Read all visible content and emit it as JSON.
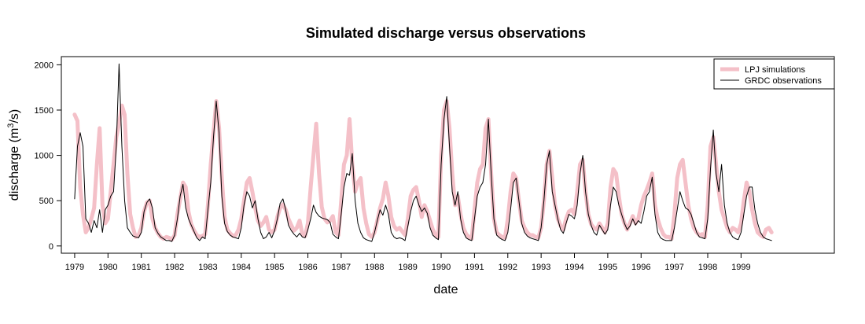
{
  "chart_data": {
    "type": "line",
    "title": "Simulated discharge versus observations",
    "xlabel": "date",
    "ylabel": "discharge (m³/s)",
    "ylabel_parts": {
      "prefix": "discharge (m",
      "sup": "3",
      "suffix": "/s)"
    },
    "x_ticks": [
      "1979",
      "1980",
      "1981",
      "1982",
      "1983",
      "1984",
      "1985",
      "1986",
      "1987",
      "1988",
      "1989",
      "1990",
      "1991",
      "1992",
      "1993",
      "1994",
      "1995",
      "1996",
      "1997",
      "1998",
      "1999"
    ],
    "y_ticks": [
      0,
      500,
      1000,
      1500,
      2000
    ],
    "xlim": [
      1978.6,
      2001.8
    ],
    "ylim": [
      -80,
      2090
    ],
    "grid": false,
    "legend_position": "top-right",
    "series": [
      {
        "name": "LPJ simulations",
        "color": "#f4c0c8",
        "style": "thick",
        "years": [
          [
            1450,
            1380,
            650,
            350,
            150,
            200,
            300,
            420,
            900,
            1300,
            450,
            250
          ],
          [
            300,
            600,
            900,
            1200,
            1350,
            1550,
            1450,
            800,
            350,
            200,
            100,
            120
          ],
          [
            200,
            380,
            480,
            500,
            300,
            200,
            140,
            100,
            80,
            100,
            90,
            70
          ],
          [
            120,
            350,
            520,
            700,
            650,
            380,
            240,
            170,
            120,
            100,
            110,
            130
          ],
          [
            450,
            900,
            1250,
            1600,
            1300,
            750,
            320,
            180,
            140,
            110,
            120,
            180
          ],
          [
            300,
            500,
            700,
            750,
            600,
            420,
            280,
            220,
            260,
            320,
            180,
            150
          ],
          [
            180,
            320,
            420,
            460,
            400,
            300,
            230,
            170,
            200,
            280,
            130,
            110
          ],
          [
            250,
            650,
            1000,
            1350,
            800,
            430,
            300,
            260,
            280,
            330,
            150,
            120
          ],
          [
            500,
            900,
            1000,
            1400,
            900,
            600,
            700,
            750,
            420,
            250,
            130,
            100
          ],
          [
            150,
            280,
            420,
            520,
            700,
            550,
            320,
            220,
            180,
            200,
            160,
            120
          ],
          [
            300,
            550,
            620,
            650,
            500,
            320,
            450,
            380,
            280,
            180,
            120,
            100
          ],
          [
            1000,
            1500,
            1600,
            1300,
            800,
            450,
            550,
            350,
            200,
            130,
            100,
            80
          ],
          [
            400,
            700,
            850,
            900,
            1300,
            1400,
            800,
            300,
            150,
            120,
            100,
            90
          ],
          [
            300,
            600,
            800,
            750,
            500,
            280,
            200,
            150,
            120,
            120,
            100,
            90
          ],
          [
            200,
            500,
            900,
            1050,
            750,
            450,
            300,
            220,
            180,
            300,
            380,
            400
          ],
          [
            350,
            600,
            900,
            950,
            600,
            350,
            240,
            200,
            180,
            250,
            200,
            150
          ],
          [
            250,
            650,
            850,
            800,
            550,
            350,
            250,
            180,
            250,
            330,
            250,
            300
          ],
          [
            450,
            550,
            620,
            700,
            800,
            450,
            300,
            200,
            130,
            100,
            100,
            80
          ],
          [
            350,
            750,
            900,
            950,
            700,
            450,
            300,
            200,
            150,
            120,
            130,
            100
          ],
          [
            450,
            1100,
            1200,
            900,
            600,
            400,
            300,
            200,
            150,
            200,
            180,
            150
          ],
          [
            250,
            500,
            700,
            600,
            400,
            250,
            150,
            120,
            100,
            180,
            200,
            150
          ]
        ]
      },
      {
        "name": "GRDC observations",
        "color": "#000000",
        "style": "thin",
        "years": [
          [
            520,
            1100,
            1250,
            1100,
            300,
            250,
            150,
            280,
            200,
            400,
            150,
            400
          ],
          [
            450,
            550,
            600,
            1100,
            2010,
            1100,
            500,
            200,
            150,
            110,
            100,
            90
          ],
          [
            150,
            380,
            480,
            520,
            420,
            200,
            140,
            100,
            80,
            60,
            60,
            50
          ],
          [
            120,
            300,
            550,
            680,
            420,
            300,
            230,
            160,
            90,
            60,
            100,
            80
          ],
          [
            400,
            700,
            1200,
            1600,
            1250,
            550,
            250,
            160,
            120,
            100,
            90,
            80
          ],
          [
            200,
            450,
            600,
            550,
            420,
            500,
            300,
            150,
            80,
            100,
            150,
            90
          ],
          [
            170,
            300,
            470,
            520,
            400,
            230,
            170,
            130,
            100,
            140,
            100,
            90
          ],
          [
            180,
            300,
            450,
            370,
            330,
            310,
            300,
            290,
            260,
            130,
            100,
            80
          ],
          [
            350,
            650,
            800,
            780,
            1020,
            500,
            250,
            150,
            90,
            70,
            60,
            50
          ],
          [
            150,
            280,
            400,
            340,
            450,
            350,
            150,
            100,
            80,
            90,
            80,
            60
          ],
          [
            220,
            380,
            500,
            550,
            450,
            380,
            420,
            360,
            200,
            120,
            90,
            70
          ],
          [
            900,
            1400,
            1650,
            1100,
            600,
            450,
            600,
            300,
            150,
            90,
            70,
            60
          ],
          [
            300,
            550,
            650,
            700,
            900,
            1400,
            800,
            300,
            120,
            90,
            70,
            60
          ],
          [
            150,
            400,
            700,
            750,
            500,
            250,
            150,
            110,
            90,
            80,
            70,
            60
          ],
          [
            200,
            500,
            900,
            1050,
            600,
            450,
            300,
            180,
            140,
            250,
            350,
            330
          ],
          [
            300,
            450,
            800,
            1000,
            600,
            350,
            230,
            150,
            120,
            230,
            180,
            130
          ],
          [
            180,
            450,
            650,
            600,
            450,
            350,
            250,
            180,
            220,
            300,
            230,
            280
          ],
          [
            250,
            380,
            550,
            600,
            760,
            350,
            150,
            90,
            70,
            60,
            60,
            60
          ],
          [
            200,
            400,
            600,
            500,
            420,
            400,
            350,
            250,
            150,
            100,
            90,
            80
          ],
          [
            300,
            850,
            1280,
            800,
            600,
            900,
            450,
            250,
            150,
            100,
            80,
            70
          ],
          [
            150,
            350,
            550,
            650,
            650,
            400,
            250,
            150,
            100,
            80,
            70,
            60
          ]
        ]
      }
    ]
  }
}
